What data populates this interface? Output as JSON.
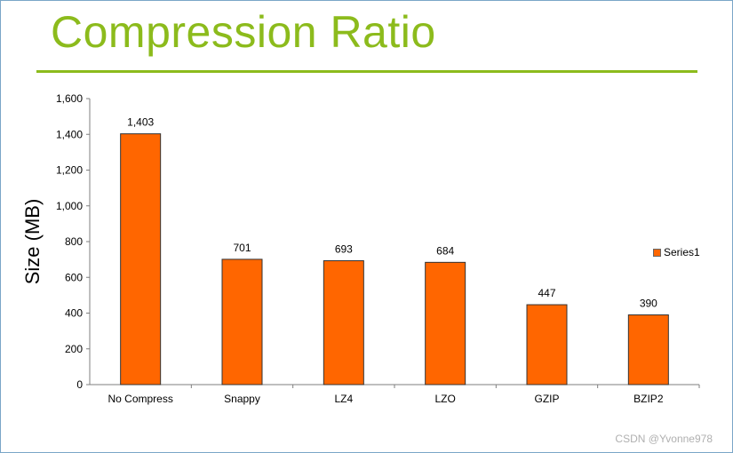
{
  "slide": {
    "title": "Compression Ratio",
    "watermark": "CSDN @Yvonne978",
    "colors": {
      "title": "#8cbb1c",
      "bar": "#ff6600",
      "bar_outline": "#333333"
    }
  },
  "chart_data": {
    "type": "bar",
    "title": "",
    "xlabel": "",
    "ylabel": "Size (MB)",
    "categories": [
      "No Compress",
      "Snappy",
      "LZ4",
      "LZO",
      "GZIP",
      "BZIP2"
    ],
    "series": [
      {
        "name": "Series1",
        "values": [
          1403,
          701,
          693,
          684,
          447,
          390
        ],
        "labels": [
          "1,403",
          "701",
          "693",
          "684",
          "447",
          "390"
        ]
      }
    ],
    "ylim": [
      0,
      1600
    ],
    "yticks": [
      0,
      200,
      400,
      600,
      800,
      1000,
      1200,
      1400,
      1600
    ],
    "ytick_labels": [
      "0",
      "200",
      "400",
      "600",
      "800",
      "1,000",
      "1,200",
      "1,400",
      "1,600"
    ],
    "grid": false,
    "legend": "right"
  }
}
